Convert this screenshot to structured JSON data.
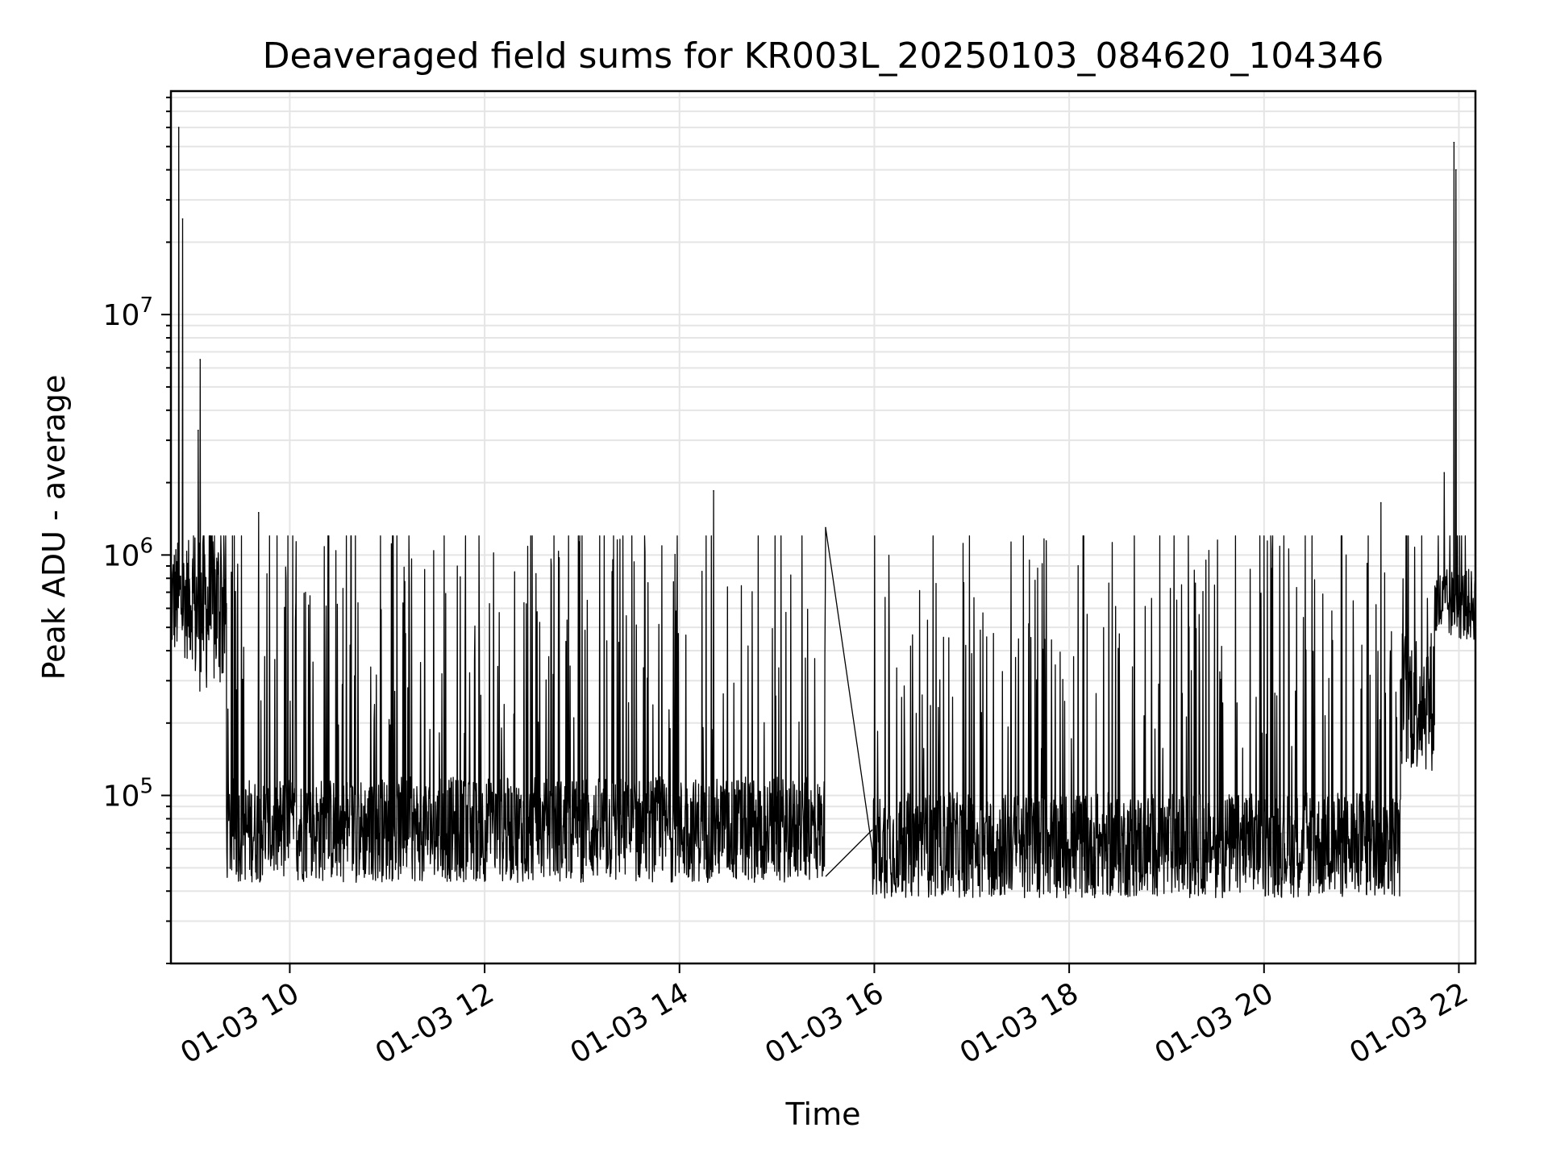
{
  "chart_data": {
    "type": "line",
    "title": "Deaveraged field sums for KR003L_20250103_084620_104346",
    "xlabel": "Time",
    "ylabel": "Peak ADU - average",
    "x_ticks": [
      "01-03 10",
      "01-03 12",
      "01-03 14",
      "01-03 16",
      "01-03 18",
      "01-03 20",
      "01-03 22"
    ],
    "y_ticks": [
      {
        "base": "10",
        "exp": "5",
        "value": 100000
      },
      {
        "base": "10",
        "exp": "6",
        "value": 1000000
      },
      {
        "base": "10",
        "exp": "7",
        "value": 10000000
      }
    ],
    "x_domain_hours": [
      8.78,
      22.17
    ],
    "ylim": [
      20000,
      85000000
    ],
    "y_scale": "log",
    "grid": true,
    "line_color": "#000000",
    "grid_color": "#e5e5e5",
    "series": [
      {
        "segments": [
          {
            "t_start": 8.78,
            "t_end": 9.0,
            "base": 650000,
            "spread": 0.25,
            "spike_rate": 0.0
          },
          {
            "t_start": 9.0,
            "t_end": 9.35,
            "base": 600000,
            "spread": 0.35,
            "spike_rate": 0.05
          },
          {
            "t_start": 9.35,
            "t_end": 15.5,
            "base": 72000,
            "spread": 0.22,
            "spike_rate": 0.12
          },
          {
            "t_start": 15.98,
            "t_end": 21.4,
            "base": 62000,
            "spread": 0.22,
            "spike_rate": 0.12
          },
          {
            "t_start": 21.4,
            "t_end": 21.75,
            "base": 250000,
            "spread": 0.3,
            "spike_rate": 0.05
          },
          {
            "t_start": 21.75,
            "t_end": 22.17,
            "base": 620000,
            "spread": 0.15,
            "spike_rate": 0.04
          }
        ],
        "highlights": [
          {
            "t": 8.86,
            "y": 60000000
          },
          {
            "t": 8.9,
            "y": 25000000
          },
          {
            "t": 9.08,
            "y": 6500000
          },
          {
            "t": 9.06,
            "y": 3300000
          },
          {
            "t": 9.68,
            "y": 1500000
          },
          {
            "t": 14.35,
            "y": 1850000
          },
          {
            "t": 15.5,
            "y": 1300000
          },
          {
            "t": 21.95,
            "y": 52000000
          },
          {
            "t": 21.97,
            "y": 40000000
          },
          {
            "t": 21.85,
            "y": 2200000
          },
          {
            "t": 21.2,
            "y": 1650000
          }
        ],
        "gap": {
          "t_from": 15.5,
          "y_from": 46000,
          "t_to": 15.98,
          "y_to": 72000
        }
      }
    ]
  }
}
